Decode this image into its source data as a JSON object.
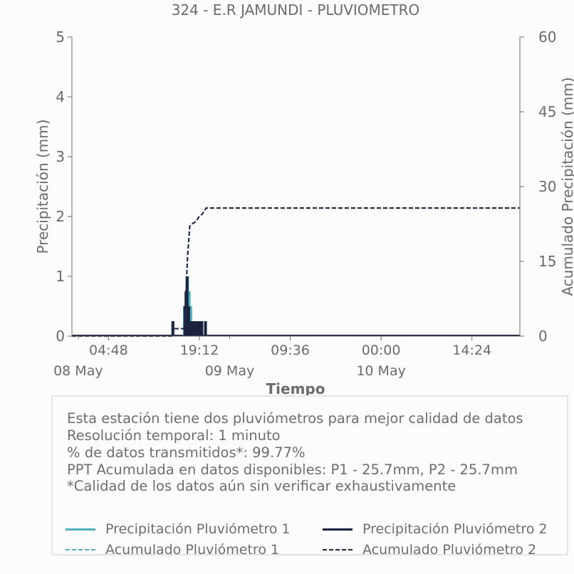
{
  "chart_data": {
    "type": "bar",
    "title": "324 - E.R JAMUNDI - PLUVIOMETRO",
    "xlabel": "Tiempo",
    "ylabel": "Precipitación (mm)",
    "ylabel_right": "Acumulado Precipitación (mm)",
    "ylim": [
      0,
      5
    ],
    "ylim_right": [
      0,
      60
    ],
    "yticks": [
      "0",
      "1",
      "2",
      "3",
      "4",
      "5"
    ],
    "yticks_right": [
      "0",
      "15",
      "30",
      "45",
      "60"
    ],
    "xlim": [
      "2025-05-07 23:00",
      "2025-05-10 22:00"
    ],
    "xticks": [
      {
        "time": "2025-05-08 04:48",
        "label": "04:48",
        "date_label": ""
      },
      {
        "time": "2025-05-08 19:12",
        "label": "19:12",
        "date_label": ""
      },
      {
        "time": "2025-05-09 09:36",
        "label": "09:36",
        "date_label": ""
      },
      {
        "time": "2025-05-10 00:00",
        "label": "00:00",
        "date_label": ""
      },
      {
        "time": "2025-05-10 14:24",
        "label": "14:24",
        "date_label": ""
      }
    ],
    "date_labels": [
      {
        "time": "2025-05-08 00:00",
        "label": "08 May"
      },
      {
        "time": "2025-05-09 00:00",
        "label": "09 May"
      },
      {
        "time": "2025-05-10 00:00",
        "label": "10 May"
      }
    ],
    "grid": false,
    "legend_position": "bottom",
    "series": [
      {
        "name": "Precipitación Pluviómetro 1",
        "kind": "bars",
        "color": "#4fb0c0",
        "x": [
          "2025-05-08 15:00",
          "2025-05-08 16:50",
          "2025-05-08 17:05",
          "2025-05-08 17:20",
          "2025-05-08 17:35",
          "2025-05-08 17:50",
          "2025-05-08 18:05",
          "2025-05-08 18:20",
          "2025-05-08 18:35",
          "2025-05-08 18:50",
          "2025-05-08 19:05",
          "2025-05-08 19:20",
          "2025-05-08 19:35",
          "2025-05-08 20:10"
        ],
        "values": [
          0.25,
          0.5,
          0.75,
          1.0,
          0.75,
          0.5,
          0.25,
          0.25,
          0.25,
          0.25,
          0.25,
          0.25,
          0.25,
          0.25
        ]
      },
      {
        "name": "Precipitación Pluviómetro 2",
        "kind": "bars",
        "color": "#1a2240",
        "x": [
          "2025-05-08 15:00",
          "2025-05-08 16:55",
          "2025-05-08 17:05",
          "2025-05-08 17:15",
          "2025-05-08 17:30",
          "2025-05-08 17:45",
          "2025-05-08 18:05",
          "2025-05-08 18:20",
          "2025-05-08 18:35",
          "2025-05-08 18:50",
          "2025-05-08 19:05",
          "2025-05-08 19:20",
          "2025-05-08 19:35",
          "2025-05-08 20:10"
        ],
        "values": [
          0.25,
          0.5,
          0.75,
          1.0,
          0.5,
          0.25,
          0.25,
          0.25,
          0.25,
          0.25,
          0.25,
          0.25,
          0.25,
          0.25
        ]
      },
      {
        "name": "Acumulado Pluviómetro 1",
        "kind": "dashed",
        "color": "#4fb0c0",
        "x": [
          "2025-05-07 23:00",
          "2025-05-08 15:00",
          "2025-05-08 15:10",
          "2025-05-08 16:45",
          "2025-05-08 17:05",
          "2025-05-08 17:20",
          "2025-05-08 17:40",
          "2025-05-08 18:00",
          "2025-05-08 18:40",
          "2025-05-08 19:10",
          "2025-05-08 19:40",
          "2025-05-08 20:15",
          "2025-05-10 22:00"
        ],
        "values": [
          0,
          0,
          1.5,
          1.5,
          9,
          16,
          22,
          22.5,
          23,
          24,
          24.5,
          25.7,
          25.7
        ]
      },
      {
        "name": "Acumulado Pluviómetro 2",
        "kind": "dashed",
        "color": "#1a2240",
        "x": [
          "2025-05-07 23:00",
          "2025-05-08 15:00",
          "2025-05-08 15:10",
          "2025-05-08 16:45",
          "2025-05-08 17:05",
          "2025-05-08 17:20",
          "2025-05-08 17:40",
          "2025-05-08 18:00",
          "2025-05-08 18:40",
          "2025-05-08 19:10",
          "2025-05-08 19:40",
          "2025-05-08 20:15",
          "2025-05-10 22:00"
        ],
        "values": [
          0,
          0,
          1.5,
          1.5,
          9,
          16,
          22,
          22.5,
          23,
          24,
          24.5,
          25.7,
          25.7
        ]
      }
    ]
  },
  "info": {
    "lines": [
      "Esta estación tiene dos pluviómetros para mejor calidad de datos",
      "Resolución temporal: 1 minuto",
      "% de datos transmitidos*: 99.77%",
      "PPT Acumulada en datos disponibles: P1 - 25.7mm, P2 - 25.7mm",
      "*Calidad de los datos aún sin verificar exhaustivamente"
    ]
  },
  "legend": [
    {
      "label": "Precipitación Pluviómetro 1",
      "style": "solid",
      "color": "#4fb0c0"
    },
    {
      "label": "Precipitación Pluviómetro 2",
      "style": "solid",
      "color": "#1a2240"
    },
    {
      "label": "Acumulado Pluviómetro 1",
      "style": "dashed",
      "color": "#4fb0c0"
    },
    {
      "label": "Acumulado Pluviómetro 2",
      "style": "dashed",
      "color": "#1a2240"
    }
  ]
}
